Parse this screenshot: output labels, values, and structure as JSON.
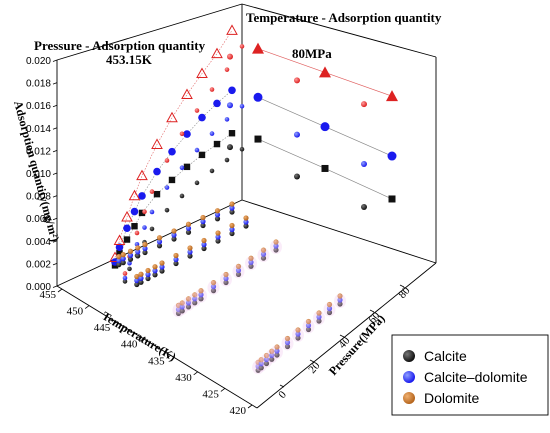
{
  "chart_data": {
    "type": "scatter",
    "headings": {
      "left": "Pressure - Adsorption quantity",
      "right": "Temperature - Adsorption quantity",
      "left_condition": "453.15K",
      "right_condition": "80MPa"
    },
    "axes": {
      "z": {
        "label": "Adsorption quantity(mg/m²)",
        "ticks": [
          "0.000",
          "0.002",
          "0.004",
          "0.006",
          "0.008",
          "0.010",
          "0.012",
          "0.014",
          "0.016",
          "0.018",
          "0.020"
        ],
        "range": [
          0,
          0.02
        ]
      },
      "temperature": {
        "label": "Temperature(K)",
        "ticks": [
          "420",
          "425",
          "430",
          "435",
          "440",
          "445",
          "450",
          "455"
        ],
        "range": [
          420,
          455
        ]
      },
      "pressure": {
        "label": "Pressure(MPa)",
        "ticks": [
          "0",
          "20",
          "40",
          "60",
          "80"
        ],
        "range": [
          0,
          80
        ]
      }
    },
    "legend": {
      "placement": "bottom-right",
      "entries": [
        {
          "name": "Calcite",
          "color": "#111111"
        },
        {
          "name": "Calcite–dolomite",
          "color": "#1a1aee"
        },
        {
          "name": "Dolomite",
          "color": "#b5651d"
        }
      ]
    },
    "colors": {
      "calcite": "#111111",
      "calcite_dolomite": "#1a1aee",
      "dolomite": "#b5651d",
      "proj_red": "#dd2222",
      "proj_blue": "#1a1aee",
      "proj_black": "#111111",
      "line_red": "#e06060",
      "line_gray": "#888888"
    },
    "series": [
      {
        "name": "Calcite",
        "pressure": [
          2,
          5,
          10,
          15,
          20,
          30,
          40,
          50,
          60,
          70,
          80
        ],
        "temperature": [
          453.15
        ],
        "values": [
          0.0015,
          0.0025,
          0.0035,
          0.0045,
          0.0055,
          0.0068,
          0.0077,
          0.0085,
          0.0092,
          0.0098,
          0.0104
        ]
      },
      {
        "name": "Calcite–dolomite",
        "pressure": [
          2,
          5,
          10,
          15,
          20,
          30,
          40,
          50,
          60,
          70,
          80
        ],
        "values": [
          0.0018,
          0.003,
          0.0045,
          0.0058,
          0.007,
          0.0088,
          0.0102,
          0.0114,
          0.0125,
          0.0134,
          0.0142
        ]
      },
      {
        "name": "Dolomite",
        "pressure": [
          2,
          5,
          10,
          15,
          20,
          30,
          40,
          50,
          60,
          70,
          80
        ],
        "values": [
          0.0022,
          0.0036,
          0.0055,
          0.0072,
          0.0088,
          0.0112,
          0.0132,
          0.0149,
          0.0164,
          0.0178,
          0.0195
        ]
      }
    ],
    "temperature_series": {
      "temperature": [
        423.15,
        438.15,
        453.15
      ],
      "calcite": [
        0.0125,
        0.0115,
        0.0104
      ],
      "calcite_dolomite": [
        0.0162,
        0.0152,
        0.0142
      ],
      "dolomite": [
        0.0205,
        0.02,
        0.0195
      ]
    }
  }
}
